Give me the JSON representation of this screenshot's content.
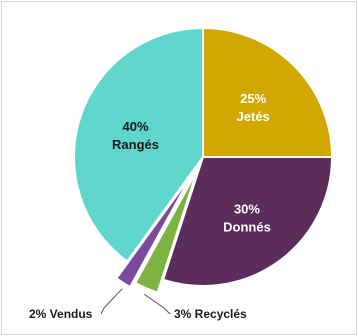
{
  "chart_data": {
    "type": "pie",
    "title": "",
    "slices": [
      {
        "name": "Jetés",
        "value": 25,
        "label_pct": "25%",
        "color": "#d2a800",
        "label_color": "#ffffff",
        "placement": "inside"
      },
      {
        "name": "Donnés",
        "value": 30,
        "label_pct": "30%",
        "color": "#5c2c5b",
        "label_color": "#ffffff",
        "placement": "inside"
      },
      {
        "name": "Recyclés",
        "value": 3,
        "label_pct": "3%",
        "color": "#7cb342",
        "label_color": "#1a1a1a",
        "placement": "outside",
        "exploded": true
      },
      {
        "name": "Vendus",
        "value": 2,
        "label_pct": "2%",
        "color": "#7a4a9c",
        "label_color": "#1a1a1a",
        "placement": "outside",
        "exploded": true
      },
      {
        "name": "Rangés",
        "value": 40,
        "label_pct": "40%",
        "color": "#5ed6cc",
        "label_color": "#1a1a1a",
        "placement": "inside"
      }
    ],
    "outside_labels": [
      {
        "text": "2% Vendus"
      },
      {
        "text": "3% Recyclés"
      }
    ],
    "legend": "none"
  }
}
